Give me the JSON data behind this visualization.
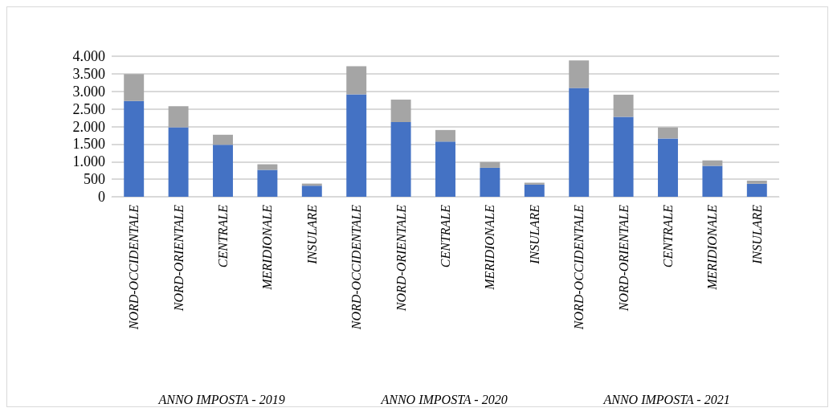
{
  "chart_data": {
    "type": "bar",
    "stacked": true,
    "categories": [
      "NORD-OCCIDENTALE",
      "NORD-ORIENTALE",
      "CENTRALE",
      "MERIDIONALE",
      "INSULARE",
      "NORD-OCCIDENTALE",
      "NORD-ORIENTALE",
      "CENTRALE",
      "MERIDIONALE",
      "INSULARE",
      "NORD-OCCIDENTALE",
      "NORD-ORIENTALE",
      "CENTRALE",
      "MERIDIONALE",
      "INSULARE"
    ],
    "series": [
      {
        "color": "#4472c4",
        "values": [
          2725,
          1980,
          1480,
          765,
          315,
          2915,
          2125,
          1570,
          825,
          345,
          3095,
          2275,
          1660,
          880,
          370
        ]
      },
      {
        "color": "#a5a5a5",
        "values": [
          765,
          595,
          285,
          160,
          60,
          800,
          640,
          330,
          165,
          55,
          785,
          630,
          315,
          155,
          90
        ]
      }
    ],
    "ylim": [
      0,
      4000
    ],
    "yticks": [
      0,
      500,
      {
        "value": 1000,
        "label": "1.000"
      },
      {
        "value": 1500,
        "label": "1.500"
      },
      {
        "value": 2000,
        "label": "2.000"
      },
      {
        "value": 2500,
        "label": "2.500"
      },
      {
        "value": 3000,
        "label": "3.000"
      },
      {
        "value": 3500,
        "label": "3.500"
      },
      {
        "value": 4000,
        "label": "4.000"
      }
    ],
    "grid": "y",
    "annotations": [
      "ANNO IMPOSTA - 2019",
      "ANNO IMPOSTA - 2020",
      "ANNO IMPOSTA - 2021"
    ]
  }
}
